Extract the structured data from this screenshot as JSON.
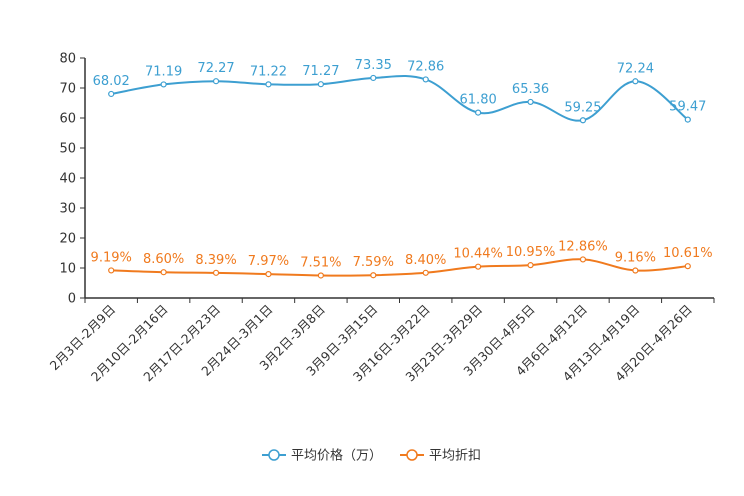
{
  "chart_data": {
    "type": "line",
    "categories": [
      "2月3日-2月9日",
      "2月10日-2月16日",
      "2月17日-2月23日",
      "2月24日-3月1日",
      "3月2日-3月8日",
      "3月9日-3月15日",
      "3月16日-3月22日",
      "3月23日-3月29日",
      "3月30日-4月5日",
      "4月6日-4月12日",
      "4月13日-4月19日",
      "4月20日-4月26日"
    ],
    "ylim": [
      0,
      80
    ],
    "yticks": [
      0,
      10,
      20,
      30,
      40,
      50,
      60,
      70,
      80
    ],
    "series": [
      {
        "name": "平均价格（万）",
        "color": "#3d9fd1",
        "values": [
          68.02,
          71.19,
          72.27,
          71.22,
          71.27,
          73.35,
          72.86,
          61.8,
          65.36,
          59.25,
          72.24,
          59.47
        ],
        "labels": [
          "68.02",
          "71.19",
          "72.27",
          "71.22",
          "71.27",
          "73.35",
          "72.86",
          "61.80",
          "65.36",
          "59.25",
          "72.24",
          "59.47"
        ]
      },
      {
        "name": "平均折扣",
        "color": "#f07a1e",
        "values": [
          9.19,
          8.6,
          8.39,
          7.97,
          7.51,
          7.59,
          8.4,
          10.44,
          10.95,
          12.86,
          9.16,
          10.61
        ],
        "labels": [
          "9.19%",
          "8.60%",
          "8.39%",
          "7.97%",
          "7.51%",
          "7.59%",
          "8.40%",
          "10.44%",
          "10.95%",
          "12.86%",
          "9.16%",
          "10.61%"
        ]
      }
    ],
    "legend_position": "bottom-center",
    "grid": false
  }
}
